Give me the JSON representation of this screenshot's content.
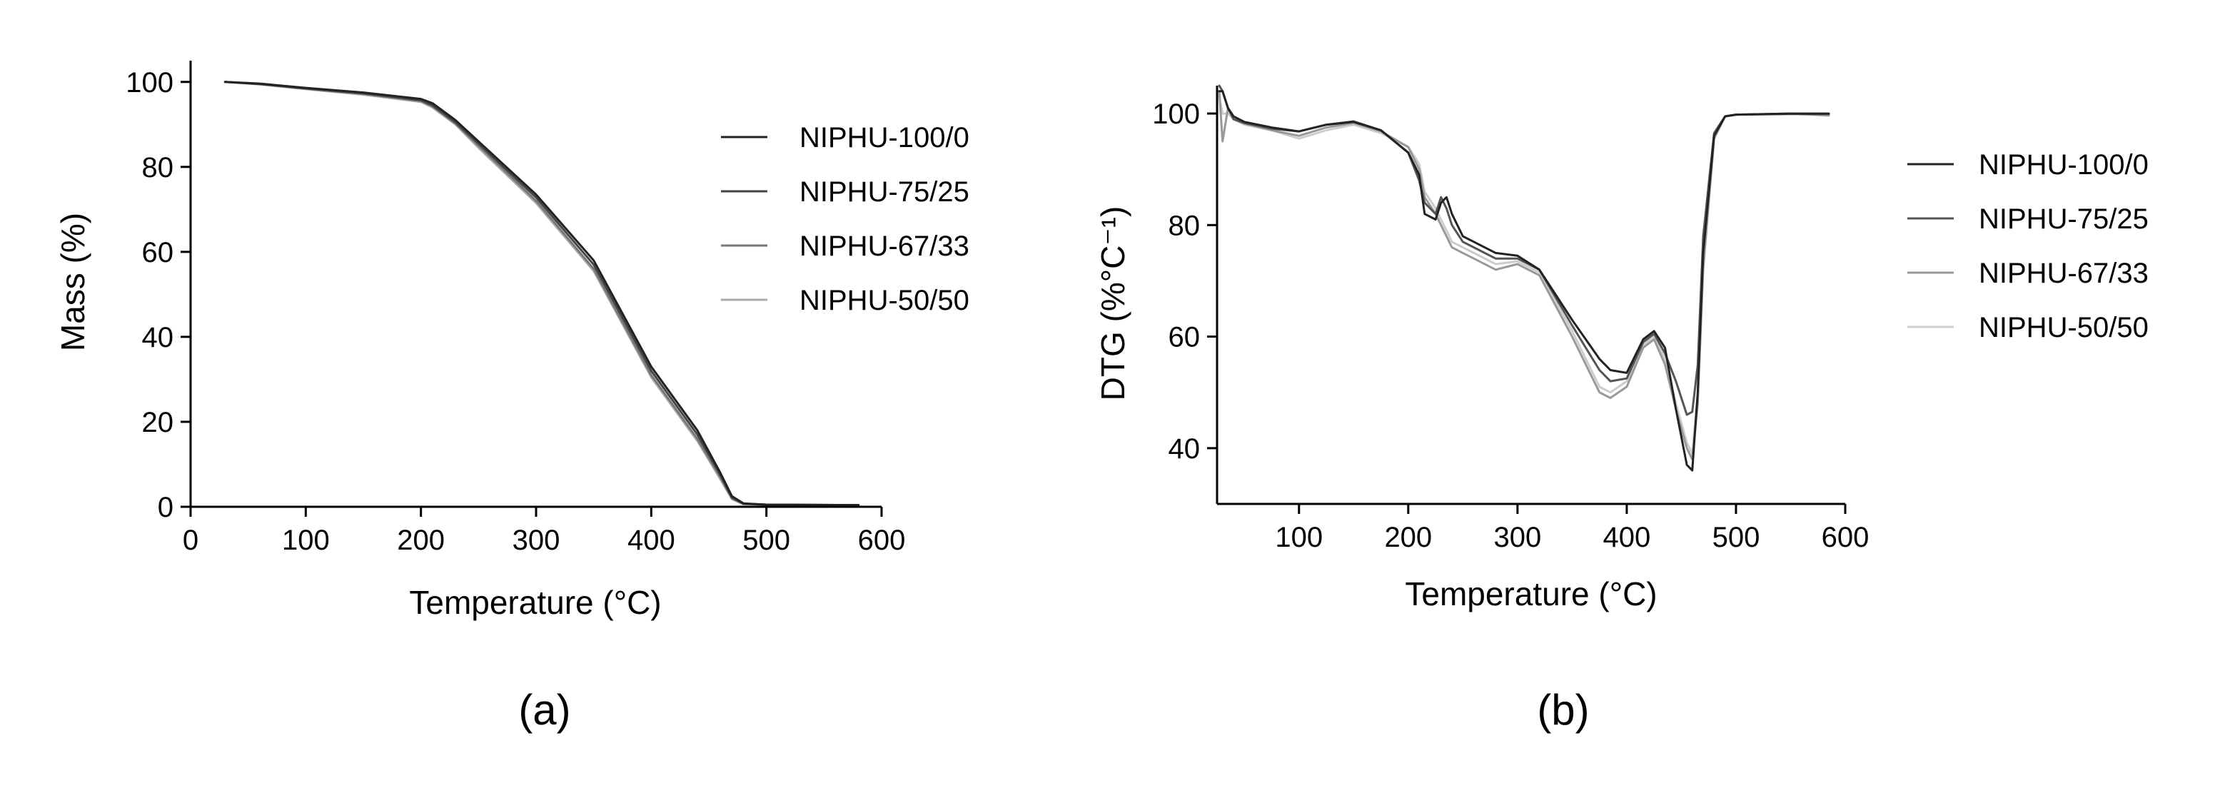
{
  "chart_data": [
    {
      "type": "line",
      "panel_label": "(a)",
      "xlabel": "Temperature (°C)",
      "ylabel": "Mass (%)",
      "xlim": [
        0,
        600
      ],
      "ylim": [
        0,
        105
      ],
      "xticks": [
        0,
        100,
        200,
        300,
        400,
        500,
        600
      ],
      "yticks": [
        0,
        20,
        40,
        60,
        80,
        100
      ],
      "legend_position": "right",
      "series": [
        {
          "name": "NIPHU-100/0",
          "color": "#222222",
          "x": [
            30,
            60,
            100,
            150,
            200,
            210,
            230,
            250,
            300,
            350,
            400,
            440,
            460,
            470,
            480,
            500,
            580
          ],
          "y": [
            100,
            99.6,
            98.6,
            97.5,
            96.0,
            95.0,
            91.0,
            86.0,
            73.5,
            58.0,
            33.0,
            18.0,
            8.0,
            2.5,
            0.8,
            0.5,
            0.4
          ]
        },
        {
          "name": "NIPHU-75/25",
          "color": "#444444",
          "x": [
            30,
            60,
            100,
            150,
            200,
            210,
            230,
            250,
            300,
            350,
            400,
            440,
            460,
            470,
            480,
            500,
            580
          ],
          "y": [
            100,
            99.5,
            98.5,
            97.3,
            95.7,
            94.5,
            90.5,
            85.5,
            72.8,
            57.0,
            32.0,
            17.0,
            7.5,
            2.2,
            0.7,
            0.5,
            0.4
          ]
        },
        {
          "name": "NIPHU-67/33",
          "color": "#777777",
          "x": [
            30,
            60,
            100,
            150,
            200,
            210,
            230,
            250,
            300,
            350,
            400,
            440,
            460,
            470,
            480,
            500,
            580
          ],
          "y": [
            100,
            99.5,
            98.4,
            97.2,
            95.5,
            94.3,
            90.2,
            85.0,
            72.0,
            56.0,
            31.0,
            16.0,
            7.0,
            2.0,
            0.7,
            0.5,
            0.4
          ]
        },
        {
          "name": "NIPHU-50/50",
          "color": "#aaaaaa",
          "x": [
            30,
            60,
            100,
            150,
            200,
            210,
            230,
            250,
            300,
            350,
            400,
            440,
            460,
            470,
            480,
            500,
            580
          ],
          "y": [
            100,
            99.4,
            98.3,
            97.0,
            95.3,
            94.0,
            90.0,
            84.5,
            71.5,
            55.5,
            30.5,
            15.5,
            6.5,
            1.8,
            0.6,
            0.5,
            0.4
          ]
        }
      ]
    },
    {
      "type": "line",
      "panel_label": "(b)",
      "xlabel": "Temperature (°C)",
      "ylabel": "DTG (%°C⁻¹)",
      "xlim": [
        25,
        600
      ],
      "ylim": [
        30,
        105
      ],
      "xticks": [
        100,
        200,
        300,
        400,
        500,
        600
      ],
      "yticks": [
        40,
        60,
        80,
        100
      ],
      "legend_position": "right",
      "series": [
        {
          "name": "NIPHU-100/0",
          "color": "#222222",
          "x": [
            27,
            30,
            35,
            40,
            50,
            75,
            100,
            125,
            150,
            175,
            200,
            210,
            215,
            225,
            230,
            235,
            240,
            250,
            260,
            280,
            300,
            320,
            350,
            375,
            385,
            400,
            415,
            425,
            435,
            445,
            455,
            460,
            465,
            470,
            480,
            490,
            500,
            550,
            585
          ],
          "y": [
            104,
            104,
            101,
            99.5,
            98.5,
            97.5,
            96.8,
            98,
            98.5,
            97,
            93,
            89,
            82,
            81,
            84,
            85,
            82,
            78,
            77,
            75,
            74.5,
            72,
            63,
            56,
            54,
            53.5,
            59.5,
            61,
            58,
            47,
            37,
            36,
            50,
            75,
            96,
            99.5,
            99.8,
            100,
            100
          ]
        },
        {
          "name": "NIPHU-75/25",
          "color": "#555555",
          "x": [
            27,
            30,
            35,
            40,
            50,
            75,
            100,
            125,
            150,
            175,
            200,
            210,
            215,
            225,
            230,
            235,
            240,
            250,
            260,
            280,
            300,
            320,
            350,
            375,
            385,
            400,
            415,
            425,
            435,
            445,
            455,
            460,
            465,
            470,
            480,
            490,
            500,
            550,
            585
          ],
          "y": [
            105,
            104,
            101,
            99,
            98.3,
            97.3,
            96.8,
            98,
            98.6,
            97,
            93,
            88,
            84,
            82,
            85,
            83,
            80,
            77,
            76,
            74,
            74,
            72,
            62,
            54,
            52,
            52.5,
            59,
            60.5,
            57,
            52,
            46,
            46.5,
            55,
            78,
            96.5,
            99.5,
            99.8,
            99.9,
            99.9
          ]
        },
        {
          "name": "NIPHU-67/33",
          "color": "#999999",
          "x": [
            27,
            30,
            35,
            40,
            50,
            75,
            100,
            125,
            150,
            175,
            200,
            210,
            215,
            225,
            230,
            235,
            240,
            250,
            260,
            280,
            300,
            320,
            350,
            375,
            385,
            400,
            415,
            425,
            435,
            445,
            455,
            460,
            465,
            470,
            480,
            490,
            500,
            550,
            585
          ],
          "y": [
            104,
            95,
            101,
            99,
            98.2,
            97,
            96,
            97.5,
            98.3,
            96.8,
            94,
            90,
            85,
            82,
            80,
            78,
            76,
            75,
            74,
            72,
            73,
            71,
            60,
            50,
            49,
            51,
            58,
            59.5,
            55,
            47,
            40,
            38,
            48,
            72,
            95.5,
            99.5,
            99.8,
            100,
            99.7
          ]
        },
        {
          "name": "NIPHU-50/50",
          "color": "#cccccc",
          "x": [
            27,
            30,
            35,
            40,
            50,
            75,
            100,
            125,
            150,
            175,
            200,
            210,
            215,
            225,
            230,
            235,
            240,
            250,
            260,
            280,
            300,
            320,
            350,
            375,
            385,
            400,
            415,
            425,
            435,
            445,
            455,
            460,
            465,
            470,
            480,
            490,
            500,
            550,
            585
          ],
          "y": [
            103,
            100,
            100,
            99,
            98,
            97,
            95.5,
            97,
            98,
            96.5,
            94,
            91,
            86,
            83,
            81,
            79,
            77,
            76,
            75,
            73,
            73.5,
            71.5,
            61,
            51,
            50,
            52,
            58.5,
            60,
            56,
            48,
            41,
            39,
            50,
            74,
            96,
            99.5,
            99.8,
            100,
            99.6
          ]
        }
      ]
    }
  ]
}
